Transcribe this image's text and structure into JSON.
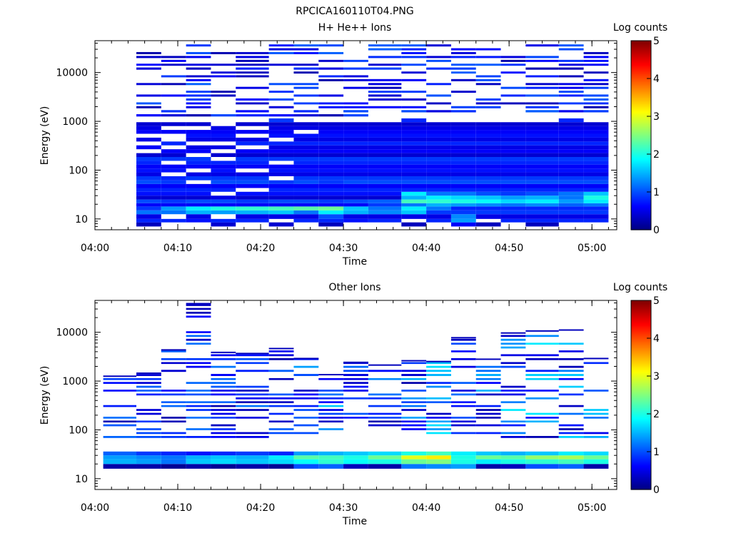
{
  "figure_title": "RPCICA160110T04.PNG",
  "colorbar_label": "Log counts",
  "colorbar_ticks": [
    "0",
    "1",
    "2",
    "3",
    "4",
    "5"
  ],
  "chart_data": [
    {
      "type": "heatmap",
      "title": "H+ He++ Ions",
      "xlabel": "Time",
      "ylabel": "Energy (eV)",
      "x_range": [
        "04:00",
        "05:03"
      ],
      "x_ticks": [
        "04:00",
        "04:10",
        "04:20",
        "04:30",
        "04:40",
        "04:50",
        "05:00"
      ],
      "y_scale": "log",
      "y_range": [
        6,
        45000
      ],
      "y_ticks": [
        "10",
        "100",
        "1000",
        "10000"
      ],
      "color_scale": "jet",
      "color_range": [
        0,
        5
      ],
      "cells": [
        [
          "04:05",
          "04:08",
          0.3,
          0.8,
          0.5,
          1.2,
          0.9,
          0.6,
          1.0,
          0.4,
          0.7,
          0.8,
          0.6,
          1.0,
          0.9,
          0.5,
          0.7,
          0.6,
          0.8,
          0.9,
          0.4,
          0,
          0.6,
          0,
          0.5,
          0,
          0.6,
          0.5,
          0.4,
          0
        ],
        [
          "04:08",
          "04:11",
          0,
          0.8,
          0,
          1.2,
          1.4,
          0.6,
          0.9,
          0.4,
          0.7,
          0.8,
          0.6,
          0.9,
          0.8,
          0,
          0.7,
          0.6,
          0,
          0.9,
          0.4,
          0.6,
          0,
          0.8,
          0,
          0,
          0.6,
          0,
          0.4,
          0
        ],
        [
          "04:11",
          "04:14",
          0,
          0.7,
          0.5,
          1.5,
          1.8,
          0.6,
          1.0,
          0.4,
          0.7,
          0.8,
          0.6,
          0,
          0.9,
          0.5,
          0,
          0.6,
          0.8,
          0.9,
          0,
          0.6,
          0.5,
          0,
          0.5,
          0.7,
          0.6,
          0,
          0.4,
          0
        ],
        [
          "04:14",
          "04:17",
          0.4,
          0.8,
          0,
          1.4,
          2.0,
          0.6,
          1.0,
          0.5,
          0,
          0.8,
          0.6,
          1.0,
          0.9,
          0.5,
          0.7,
          0.6,
          0.8,
          0,
          0.4,
          0,
          0.5,
          0,
          0.5,
          0.7,
          0.6,
          0.5,
          0,
          0
        ],
        [
          "04:17",
          "04:21",
          0,
          0.8,
          0.5,
          1.5,
          2.1,
          0.6,
          0.9,
          0.4,
          0.7,
          0,
          0.6,
          1.0,
          0.9,
          0.5,
          0,
          0.6,
          0.8,
          0.9,
          0.4,
          0.6,
          0,
          0.8,
          0.5,
          0,
          0.6,
          0,
          0.4,
          0
        ],
        [
          "04:21",
          "04:24",
          0.4,
          0,
          0.5,
          1.6,
          2.2,
          0.6,
          1.0,
          0.4,
          0.7,
          0.8,
          0.6,
          0.9,
          0,
          0.5,
          0.7,
          0.6,
          0,
          0.9,
          0.4,
          0.6,
          0.5,
          0.8,
          0,
          0.7,
          0.6,
          0.5,
          0.4,
          0.9
        ],
        [
          "04:24",
          "04:27",
          0,
          0.8,
          0.5,
          1.2,
          2.3,
          0.6,
          1.0,
          0.4,
          0.7,
          0.8,
          0.6,
          1.0,
          0.9,
          0.5,
          0.7,
          0.6,
          0.8,
          0.9,
          0.4,
          0.6,
          0.5,
          0.8,
          0.5,
          0.7,
          0,
          0.5,
          0.4,
          0
        ],
        [
          "04:27",
          "04:30",
          0.3,
          0.8,
          1.0,
          1.8,
          2.4,
          0.6,
          0.9,
          0.4,
          0.7,
          0.8,
          0.6,
          0.9,
          0.9,
          0.5,
          0.7,
          0.6,
          0.8,
          0.9,
          0.4,
          0.6,
          0.5,
          0.8,
          0.5,
          0.7,
          0.6,
          0.5,
          0.4,
          0
        ],
        [
          "04:30",
          "04:33",
          0,
          0.7,
          0.5,
          1.5,
          1.6,
          0.6,
          1.0,
          0.4,
          0.7,
          0.8,
          0.6,
          1.0,
          0.9,
          0.5,
          0.7,
          0.6,
          0.8,
          0.9,
          0.4,
          0.6,
          0.5,
          0.8,
          0.5,
          0.7,
          0.6,
          0.5,
          0.4,
          0
        ],
        [
          "04:33",
          "04:37",
          0,
          0.8,
          0.5,
          1.3,
          1.2,
          0.9,
          1.1,
          0.4,
          0.7,
          0.8,
          0.6,
          1.0,
          0.9,
          0.5,
          0.7,
          0.6,
          0.8,
          0.9,
          0.4,
          0.6,
          0.5,
          0.8,
          0.5,
          0.7,
          0.6,
          0.5,
          0.4,
          0
        ],
        [
          "04:37",
          "04:40",
          0.3,
          0,
          0.5,
          1.6,
          1.8,
          1.2,
          2.2,
          1.5,
          1.8,
          0.8,
          0.6,
          1.0,
          0.9,
          0.5,
          0.7,
          0.6,
          0.8,
          0.9,
          0.4,
          0.6,
          0.5,
          0.8,
          0.5,
          0.7,
          0.6,
          0.5,
          0.4,
          0.8
        ],
        [
          "04:40",
          "04:43",
          0,
          0.8,
          0.5,
          0.9,
          1.2,
          1.5,
          2.1,
          1.8,
          1.2,
          0.8,
          0.6,
          1.0,
          0.9,
          0.5,
          0.7,
          0.6,
          0.8,
          0.9,
          0.4,
          0.6,
          0.5,
          0.8,
          0.5,
          0.7,
          0.6,
          0.5,
          0.4,
          0
        ],
        [
          "04:43",
          "04:46",
          0.6,
          1.4,
          1.3,
          0.9,
          0.8,
          1.4,
          2.0,
          1.7,
          1.2,
          0.8,
          0.6,
          1.0,
          0.9,
          0.5,
          0.7,
          0.6,
          0.8,
          0.9,
          0.4,
          0.6,
          0.5,
          0.8,
          0.5,
          0.7,
          0.6,
          0.5,
          0.4,
          0
        ],
        [
          "04:46",
          "04:49",
          0.3,
          0,
          0.5,
          0.9,
          0.8,
          1.3,
          1.9,
          1.6,
          1.0,
          0.8,
          0.6,
          1.0,
          0.9,
          0.5,
          0.7,
          0.6,
          0.8,
          0.9,
          0.4,
          0.6,
          0.5,
          0.8,
          0.5,
          0.7,
          0.6,
          0.5,
          0.4,
          0
        ],
        [
          "04:49",
          "04:52",
          0,
          0.8,
          0.5,
          0.9,
          0.8,
          1.2,
          1.7,
          1.4,
          0.9,
          0.8,
          0.6,
          1.0,
          0.9,
          0.5,
          0.7,
          0.6,
          0.8,
          0.9,
          0.4,
          0.6,
          0.5,
          0.8,
          0.5,
          0.7,
          0.6,
          0.5,
          0.4,
          0
        ],
        [
          "04:52",
          "04:56",
          0.3,
          0.8,
          0.5,
          0.9,
          0.8,
          1.3,
          1.8,
          1.5,
          1.0,
          0.8,
          0.6,
          1.0,
          0.9,
          0.5,
          0.7,
          0.6,
          0.8,
          0.9,
          0.4,
          0.6,
          0.5,
          0.8,
          0.5,
          0.7,
          0.6,
          0.5,
          0.4,
          0
        ],
        [
          "04:56",
          "04:59",
          0,
          0.8,
          0.5,
          0.9,
          0.8,
          1.1,
          1.4,
          1.2,
          1.2,
          0.8,
          0.6,
          1.0,
          0.9,
          0.5,
          0.7,
          0.6,
          0.8,
          0.9,
          0.4,
          0.6,
          0.5,
          0.8,
          0.5,
          0.7,
          0.6,
          0.5,
          0.4,
          0.8
        ],
        [
          "04:59",
          "05:02",
          0,
          0.8,
          0.5,
          0.9,
          0.8,
          1.2,
          1.8,
          2.0,
          1.6,
          0.8,
          0.6,
          1.0,
          0.9,
          0.5,
          0.7,
          0.6,
          0.8,
          0.9,
          0.4,
          0.6,
          0.5,
          0.8,
          0.5,
          0.7,
          0.6,
          0.5,
          0.4,
          0
        ]
      ],
      "energy_bins_eV": [
        7,
        8.5,
        10,
        12.5,
        15,
        18,
        21,
        25,
        30,
        36,
        43,
        52,
        62,
        75,
        90,
        108,
        130,
        155,
        186,
        223,
        268,
        322,
        386,
        463,
        556,
        667,
        800,
        960,
        1150,
        1400,
        1700,
        2050,
        2450,
        2950,
        3550,
        4250,
        5100,
        6100,
        7350,
        8800,
        10500,
        12700,
        15200,
        18200,
        21900,
        26300,
        31500,
        37800
      ]
    },
    {
      "type": "heatmap",
      "title": "Other Ions",
      "xlabel": "Time",
      "ylabel": "Energy (eV)",
      "x_range": [
        "04:00",
        "05:03"
      ],
      "x_ticks": [
        "04:00",
        "04:10",
        "04:20",
        "04:30",
        "04:40",
        "04:50",
        "05:00"
      ],
      "y_scale": "log",
      "y_range": [
        6,
        45000
      ],
      "y_ticks": [
        "10",
        "100",
        "1000",
        "10000"
      ],
      "color_scale": "jet",
      "color_range": [
        0,
        5
      ],
      "columns": [
        {
          "x": [
            "04:01",
            "04:05"
          ],
          "top_eV": 1300,
          "low_band": [
            0.2,
            1.5,
            1.4,
            1.1
          ]
        },
        {
          "x": [
            "04:05",
            "04:08"
          ],
          "top_eV": 1500,
          "low_band": [
            0.2,
            1.4,
            1.3,
            0.9
          ]
        },
        {
          "x": [
            "04:08",
            "04:11"
          ],
          "top_eV": 4500,
          "low_band": [
            0.1,
            1.2,
            1.2,
            0.8
          ]
        },
        {
          "x": [
            "04:11",
            "04:14"
          ],
          "top_eV": 40000,
          "low_band": [
            0.2,
            1.6,
            1.5,
            0.7
          ]
        },
        {
          "x": [
            "04:14",
            "04:17"
          ],
          "top_eV": 4000,
          "low_band": [
            0.1,
            1.7,
            1.6,
            0.8
          ]
        },
        {
          "x": [
            "04:17",
            "04:21"
          ],
          "top_eV": 3800,
          "low_band": [
            0.2,
            1.6,
            1.5,
            0.9
          ]
        },
        {
          "x": [
            "04:21",
            "04:24"
          ],
          "top_eV": 4800,
          "low_band": [
            0.1,
            1.7,
            1.8,
            0.8
          ]
        },
        {
          "x": [
            "04:24",
            "04:27"
          ],
          "top_eV": 3000,
          "low_band": [
            1.0,
            1.9,
            2.3,
            1.4
          ]
        },
        {
          "x": [
            "04:27",
            "04:30"
          ],
          "top_eV": 1400,
          "low_band": [
            1.1,
            2.1,
            2.2,
            1.5
          ]
        },
        {
          "x": [
            "04:30",
            "04:33"
          ],
          "top_eV": 2500,
          "low_band": [
            0.3,
            1.9,
            2.0,
            1.6
          ]
        },
        {
          "x": [
            "04:33",
            "04:37"
          ],
          "top_eV": 2200,
          "low_band": [
            0.2,
            2.0,
            2.4,
            1.7
          ]
        },
        {
          "x": [
            "04:37",
            "04:40"
          ],
          "top_eV": 2700,
          "low_band": [
            1.2,
            2.4,
            3.0,
            2.0
          ]
        },
        {
          "x": [
            "04:40",
            "04:43"
          ],
          "top_eV": 2600,
          "low_band": [
            1.3,
            2.5,
            3.2,
            2.2
          ]
        },
        {
          "x": [
            "04:43",
            "04:46"
          ],
          "top_eV": 8000,
          "low_band": [
            1.4,
            2.0,
            2.0,
            1.8
          ]
        },
        {
          "x": [
            "04:46",
            "04:49"
          ],
          "top_eV": 2900,
          "low_band": [
            0.2,
            1.8,
            2.4,
            1.6
          ]
        },
        {
          "x": [
            "04:49",
            "04:52"
          ],
          "top_eV": 10000,
          "low_band": [
            0.3,
            2.0,
            2.3,
            1.5
          ]
        },
        {
          "x": [
            "04:52",
            "04:56"
          ],
          "top_eV": 11000,
          "low_band": [
            1.0,
            2.1,
            2.6,
            1.6
          ]
        },
        {
          "x": [
            "04:56",
            "04:59"
          ],
          "top_eV": 11500,
          "low_band": [
            1.1,
            2.2,
            2.7,
            1.8
          ]
        },
        {
          "x": [
            "04:59",
            "05:02"
          ],
          "top_eV": 3000,
          "low_band": [
            0.2,
            2.0,
            2.4,
            1.7
          ]
        }
      ]
    }
  ]
}
